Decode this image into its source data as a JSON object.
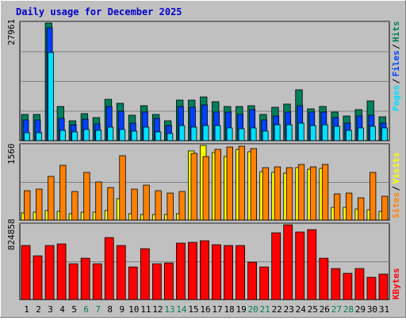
{
  "title": "Daily usage for December 2025",
  "colors": {
    "background": "#c0c0c0",
    "hits": "#00805c",
    "files": "#0040ff",
    "pages": "#00e0ff",
    "visits": "#ffff00",
    "sites": "#ff8000",
    "kbytes": "#ff0000",
    "weekend_label": "#00805c",
    "weekday_label": "#000000"
  },
  "legend": {
    "top": [
      "Pages",
      "Files",
      "Hits"
    ],
    "middle": [
      "Sites",
      "Visits"
    ],
    "bottom": [
      "KBytes"
    ]
  },
  "chart_data": [
    {
      "type": "bar",
      "panel": "hits-files-pages",
      "ymax_label": "27961",
      "ylim": [
        0,
        27961
      ],
      "categories": [
        "1",
        "2",
        "3",
        "4",
        "5",
        "6",
        "7",
        "8",
        "9",
        "10",
        "11",
        "12",
        "13",
        "14",
        "15",
        "16",
        "17",
        "18",
        "19",
        "20",
        "21",
        "22",
        "23",
        "24",
        "25",
        "26",
        "27",
        "28",
        "29",
        "30",
        "31"
      ],
      "series": [
        {
          "name": "Hits",
          "values": [
            6300,
            6300,
            27961,
            8100,
            4700,
            6500,
            5400,
            9900,
            8800,
            6000,
            8300,
            6300,
            4700,
            9700,
            9700,
            10300,
            9300,
            8200,
            8200,
            8400,
            6300,
            8000,
            8600,
            12100,
            7500,
            8100,
            6800,
            5800,
            7300,
            9400,
            5700
          ]
        },
        {
          "name": "Files",
          "values": [
            5000,
            5000,
            26800,
            5200,
            3800,
            5100,
            3900,
            8100,
            7000,
            4100,
            6800,
            5300,
            3600,
            8200,
            8000,
            8500,
            6800,
            6800,
            6300,
            7400,
            4900,
            5900,
            6800,
            8400,
            6800,
            6800,
            5500,
            4100,
            5900,
            6100,
            4200
          ]
        },
        {
          "name": "Pages",
          "values": [
            1900,
            1900,
            21000,
            2500,
            2100,
            2600,
            2400,
            3300,
            2700,
            2200,
            3200,
            2000,
            1700,
            3500,
            3300,
            3500,
            3600,
            3100,
            2900,
            3000,
            2200,
            3800,
            3700,
            4200,
            3500,
            3700,
            3400,
            2500,
            3000,
            3400,
            3000
          ]
        }
      ]
    },
    {
      "type": "bar",
      "panel": "visits-sites",
      "ymax_label": "1560",
      "ylim": [
        0,
        1560
      ],
      "categories": [
        "1",
        "2",
        "3",
        "4",
        "5",
        "6",
        "7",
        "8",
        "9",
        "10",
        "11",
        "12",
        "13",
        "14",
        "15",
        "16",
        "17",
        "18",
        "19",
        "20",
        "21",
        "22",
        "23",
        "24",
        "25",
        "26",
        "27",
        "28",
        "29",
        "30",
        "31"
      ],
      "series": [
        {
          "name": "Visits",
          "values": [
            150,
            160,
            200,
            190,
            140,
            160,
            160,
            200,
            440,
            130,
            120,
            120,
            120,
            130,
            1440,
            1560,
            1410,
            1330,
            1480,
            1430,
            1020,
            990,
            980,
            1100,
            1060,
            1080,
            260,
            270,
            240,
            220,
            190
          ]
        },
        {
          "name": "Sites",
          "values": [
            620,
            640,
            910,
            1140,
            590,
            1000,
            800,
            680,
            1340,
            640,
            730,
            610,
            560,
            600,
            1400,
            1320,
            1480,
            1520,
            1540,
            1500,
            1100,
            1120,
            1100,
            1160,
            1120,
            1160,
            550,
            560,
            470,
            990,
            490
          ]
        }
      ]
    },
    {
      "type": "bar",
      "panel": "kbytes",
      "ymax_label": "824858",
      "ylim": [
        0,
        824858
      ],
      "categories": [
        "1",
        "2",
        "3",
        "4",
        "5",
        "6",
        "7",
        "8",
        "9",
        "10",
        "11",
        "12",
        "13",
        "14",
        "15",
        "16",
        "17",
        "18",
        "19",
        "20",
        "21",
        "22",
        "23",
        "24",
        "25",
        "26",
        "27",
        "28",
        "29",
        "30",
        "31"
      ],
      "series": [
        {
          "name": "KBytes",
          "values": [
            595000,
            480000,
            600000,
            610000,
            398000,
            460000,
            398000,
            687000,
            600000,
            360000,
            560000,
            398000,
            405000,
            620000,
            630000,
            650000,
            606000,
            600000,
            600000,
            410000,
            360000,
            740000,
            824858,
            750000,
            775000,
            460000,
            344000,
            290000,
            344000,
            250000,
            280000
          ]
        }
      ]
    }
  ],
  "weekend_days": [
    "6",
    "7",
    "13",
    "14",
    "20",
    "21",
    "27",
    "28"
  ]
}
